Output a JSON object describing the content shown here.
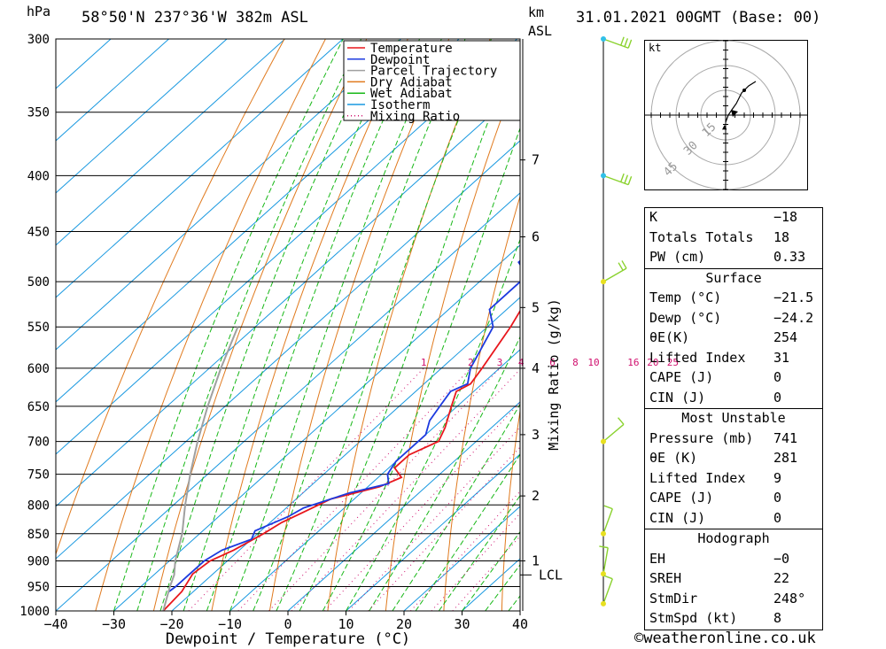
{
  "header": {
    "pressure_unit": "hPa",
    "location": "58°50'N 237°36'W 382m ASL",
    "height_unit_1": "km",
    "height_unit_2": "ASL",
    "datetime": "31.01.2021 00GMT (Base: 00)"
  },
  "chart_data": {
    "type": "line",
    "title": "",
    "xlabel": "Dewpoint / Temperature (°C)",
    "ylabel": "hPa",
    "mixing_ratio_label": "Mixing Ratio (g/kg)",
    "xlim": [
      -40,
      40
    ],
    "ylim": [
      1000,
      300
    ],
    "y_scale": "log",
    "skew": true,
    "x_ticks": [
      "−40",
      "−30",
      "−20",
      "−10",
      "0",
      "10",
      "20",
      "30",
      "40"
    ],
    "pressure_levels": [
      300,
      350,
      400,
      450,
      500,
      550,
      600,
      650,
      700,
      750,
      800,
      850,
      900,
      950,
      1000
    ],
    "height_km_labels": [
      {
        "km": "1",
        "p": 900
      },
      {
        "km": "2",
        "p": 785
      },
      {
        "km": "3",
        "p": 690
      },
      {
        "km": "4",
        "p": 600
      },
      {
        "km": "5",
        "p": 528
      },
      {
        "km": "6",
        "p": 455
      },
      {
        "km": "7",
        "p": 387
      }
    ],
    "lcl": {
      "label": "LCL",
      "p": 927
    },
    "mixing_ratio_values": [
      "1",
      "2",
      "3",
      "4",
      "6",
      "8",
      "10",
      "16",
      "20",
      "25"
    ],
    "legend": [
      "Temperature",
      "Dewpoint",
      "Parcel Trajectory",
      "Dry Adiabat",
      "Wet Adiabat",
      "Isotherm",
      "Mixing Ratio"
    ],
    "legend_position": "top-right",
    "colors": {
      "temperature": "#e8161c",
      "dewpoint": "#1c3adf",
      "parcel": "#a0a0a0",
      "dry_adiabat": "#e07a1e",
      "wet_adiabat": "#18b818",
      "isotherm": "#1898e0",
      "mixing_ratio": "#d0106e",
      "wind": "#8ad22e",
      "wind_dot": "#30c0e8"
    },
    "series": [
      {
        "name": "Temperature",
        "points": [
          [
            1000,
            -21.5
          ],
          [
            960,
            -22
          ],
          [
            925,
            -23.5
          ],
          [
            900,
            -23
          ],
          [
            880,
            -21
          ],
          [
            850,
            -19
          ],
          [
            830,
            -18
          ],
          [
            810,
            -16
          ],
          [
            790,
            -14
          ],
          [
            770,
            -8
          ],
          [
            755,
            -6
          ],
          [
            740,
            -9
          ],
          [
            720,
            -9
          ],
          [
            700,
            -6.5
          ],
          [
            680,
            -8
          ],
          [
            650,
            -11
          ],
          [
            630,
            -13
          ],
          [
            620,
            -12
          ],
          [
            600,
            -13
          ],
          [
            550,
            -16
          ],
          [
            500,
            -20
          ],
          [
            450,
            -26
          ],
          [
            400,
            -33
          ],
          [
            370,
            -38
          ],
          [
            350,
            -40
          ],
          [
            320,
            -42
          ],
          [
            300,
            -43
          ]
        ]
      },
      {
        "name": "Dewpoint",
        "points": [
          [
            960,
            -24.2
          ],
          [
            950,
            -24
          ],
          [
            925,
            -24
          ],
          [
            900,
            -24
          ],
          [
            880,
            -23
          ],
          [
            860,
            -20
          ],
          [
            845,
            -21
          ],
          [
            820,
            -18
          ],
          [
            805,
            -17
          ],
          [
            780,
            -12
          ],
          [
            765,
            -7
          ],
          [
            750,
            -9
          ],
          [
            730,
            -10
          ],
          [
            710,
            -10
          ],
          [
            690,
            -10
          ],
          [
            670,
            -12
          ],
          [
            650,
            -13
          ],
          [
            630,
            -14
          ],
          [
            620,
            -12.5
          ],
          [
            600,
            -15
          ],
          [
            550,
            -19
          ],
          [
            530,
            -23
          ],
          [
            500,
            -23
          ],
          [
            490,
            -24
          ],
          [
            480,
            -27
          ],
          [
            470,
            -27
          ],
          [
            440,
            -32
          ],
          [
            420,
            -36
          ],
          [
            400,
            -39
          ],
          [
            370,
            -42
          ],
          [
            350,
            -44
          ],
          [
            320,
            -47
          ],
          [
            300,
            -49
          ]
        ]
      },
      {
        "name": "Parcel Trajectory",
        "points": [
          [
            1000,
            -21.5
          ],
          [
            950,
            -25
          ],
          [
            927,
            -26.5
          ],
          [
            900,
            -29
          ],
          [
            850,
            -33
          ],
          [
            800,
            -38
          ],
          [
            750,
            -43
          ],
          [
            700,
            -48
          ],
          [
            650,
            -53
          ],
          [
            600,
            -58
          ],
          [
            550,
            -63
          ]
        ]
      }
    ],
    "wind_profile": [
      {
        "p": 300,
        "dir": 290,
        "kt": 25
      },
      {
        "p": 400,
        "dir": 290,
        "kt": 30
      },
      {
        "p": 500,
        "dir": 240,
        "kt": 15
      },
      {
        "p": 700,
        "dir": 230,
        "kt": 10
      },
      {
        "p": 850,
        "dir": 200,
        "kt": 10
      },
      {
        "p": 925,
        "dir": 190,
        "kt": 5
      },
      {
        "p": 985,
        "dir": 200,
        "kt": 5
      }
    ],
    "hodograph": {
      "unit_label": "kt",
      "ring_labels": [
        "15",
        "30",
        "45"
      ],
      "storm_marker": "▲"
    }
  },
  "indices": {
    "k": {
      "label": "K",
      "value": "−18"
    },
    "tt": {
      "label": "Totals Totals",
      "value": "18"
    },
    "pw": {
      "label": "PW (cm)",
      "value": "0.33"
    }
  },
  "surface": {
    "title": "Surface",
    "rows": [
      {
        "label": "Temp (°C)",
        "value": "−21.5"
      },
      {
        "label": "Dewp (°C)",
        "value": "−24.2"
      },
      {
        "label": "θE(K)",
        "value": "254"
      },
      {
        "label": "Lifted Index",
        "value": "31"
      },
      {
        "label": "CAPE (J)",
        "value": "0"
      },
      {
        "label": "CIN (J)",
        "value": "0"
      }
    ]
  },
  "most_unstable": {
    "title": "Most Unstable",
    "rows": [
      {
        "label": "Pressure (mb)",
        "value": "741"
      },
      {
        "label": "θE (K)",
        "value": "281"
      },
      {
        "label": "Lifted Index",
        "value": "9"
      },
      {
        "label": "CAPE (J)",
        "value": "0"
      },
      {
        "label": "CIN (J)",
        "value": "0"
      }
    ]
  },
  "hodograph_table": {
    "title": "Hodograph",
    "rows": [
      {
        "label": "EH",
        "value": "−0"
      },
      {
        "label": "SREH",
        "value": "22"
      },
      {
        "label": "StmDir",
        "value": "248°"
      },
      {
        "label": "StmSpd (kt)",
        "value": "8"
      }
    ]
  },
  "footer": {
    "copyright": "©weatheronline.co.uk"
  }
}
